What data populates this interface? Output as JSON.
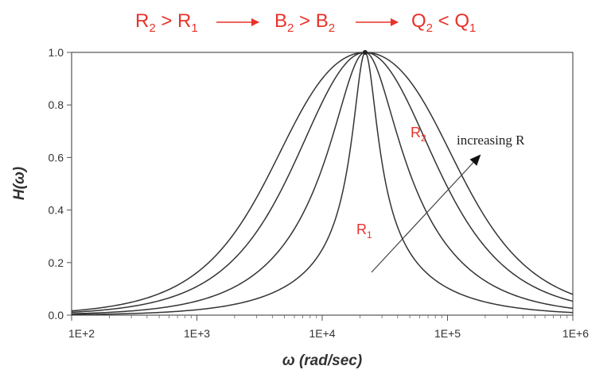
{
  "header": {
    "part1": {
      "main": "R",
      "sub": "2",
      "op": " > ",
      "main2": "R",
      "sub2": "1"
    },
    "part2": {
      "main": "B",
      "sub": "2",
      "op": " > ",
      "main2": "B",
      "sub2": "2"
    },
    "part3": {
      "main": "Q",
      "sub": "2",
      "op": " < ",
      "main2": "Q",
      "sub2": "1"
    }
  },
  "chart_data": {
    "type": "line",
    "title": "",
    "xlabel": "ω (rad/sec)",
    "ylabel": "H(ω)",
    "x_scale": "log",
    "xlim": [
      100,
      1000000
    ],
    "ylim": [
      0,
      1.0
    ],
    "x_ticks": [
      "1E+2",
      "1E+3",
      "1E+4",
      "1E+5",
      "1E+6"
    ],
    "y_ticks": [
      "0.0",
      "0.2",
      "0.4",
      "0.6",
      "0.8",
      "1.0"
    ],
    "grid": false,
    "center_frequency": 22000,
    "series": [
      {
        "name": "R1",
        "x": [
          100,
          1000,
          5000,
          10000,
          15000,
          22000,
          32000,
          50000,
          100000,
          1000000
        ],
        "y": [
          0.002,
          0.017,
          0.1,
          0.25,
          0.52,
          1.0,
          0.55,
          0.25,
          0.1,
          0.01
        ]
      },
      {
        "name": "",
        "x": [
          100,
          1000,
          5000,
          10000,
          15000,
          22000,
          32000,
          50000,
          100000,
          1000000
        ],
        "y": [
          0.005,
          0.045,
          0.25,
          0.56,
          0.85,
          1.0,
          0.84,
          0.52,
          0.24,
          0.03
        ]
      },
      {
        "name": "",
        "x": [
          100,
          1000,
          5000,
          10000,
          15000,
          22000,
          32000,
          50000,
          100000,
          1000000
        ],
        "y": [
          0.01,
          0.08,
          0.5,
          0.81,
          0.95,
          1.0,
          0.95,
          0.78,
          0.44,
          0.05
        ]
      },
      {
        "name": "R2",
        "x": [
          100,
          1000,
          5000,
          10000,
          15000,
          22000,
          32000,
          50000,
          100000,
          1000000
        ],
        "y": [
          0.015,
          0.13,
          0.6,
          0.9,
          0.98,
          1.0,
          0.98,
          0.88,
          0.6,
          0.08
        ]
      }
    ],
    "annotations": {
      "increasing_r": "increasing R",
      "r1": {
        "main": "R",
        "sub": "1"
      },
      "r2": {
        "main": "R",
        "sub": "2"
      }
    }
  },
  "colors": {
    "accent_red": "#e8322a",
    "curve": "#333333",
    "axis": "#555555"
  }
}
